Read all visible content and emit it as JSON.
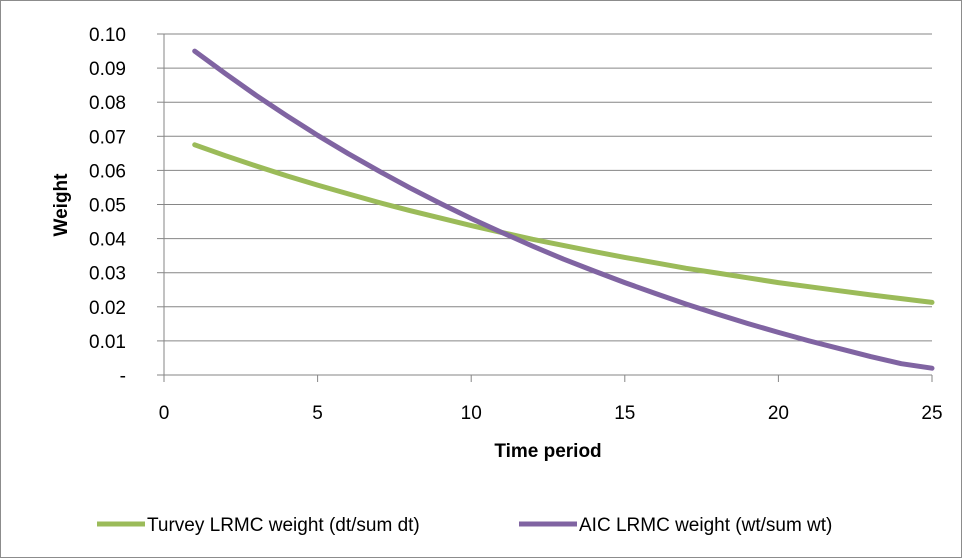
{
  "chart_data": {
    "type": "line",
    "xlabel": "Time period",
    "ylabel": "Weight",
    "xlim": [
      0,
      25
    ],
    "ylim": [
      0,
      0.1
    ],
    "x_ticks": [
      0,
      5,
      10,
      15,
      20,
      25
    ],
    "x_tick_labels": [
      "0",
      "5",
      "10",
      "15",
      "20",
      "25"
    ],
    "y_ticks": [
      0,
      0.01,
      0.02,
      0.03,
      0.04,
      0.05,
      0.06,
      0.07,
      0.08,
      0.09,
      0.1
    ],
    "y_tick_labels": [
      "-",
      "0.01",
      "0.02",
      "0.03",
      "0.04",
      "0.05",
      "0.06",
      "0.07",
      "0.08",
      "0.09",
      "0.10"
    ],
    "grid": "horizontal",
    "legend_position": "bottom",
    "x": [
      1,
      2,
      3,
      4,
      5,
      6,
      7,
      8,
      9,
      10,
      11,
      12,
      13,
      14,
      15,
      16,
      17,
      18,
      19,
      20,
      21,
      22,
      23,
      24,
      25
    ],
    "series": [
      {
        "name": "Turvey LRMC weight (dt/sum dt)",
        "color": "#9bbb59",
        "values": [
          0.0675,
          0.0643,
          0.0613,
          0.0584,
          0.0557,
          0.0531,
          0.0506,
          0.0482,
          0.046,
          0.0438,
          0.0418,
          0.0398,
          0.038,
          0.0362,
          0.0345,
          0.0329,
          0.0313,
          0.0299,
          0.0285,
          0.0271,
          0.0259,
          0.0247,
          0.0235,
          0.0224,
          0.0213
        ]
      },
      {
        "name": "AIC LRMC weight (wt/sum wt)",
        "color": "#8064a2",
        "values": [
          0.095,
          0.0884,
          0.082,
          0.076,
          0.0703,
          0.0649,
          0.0598,
          0.0549,
          0.0503,
          0.0459,
          0.0418,
          0.0378,
          0.034,
          0.0305,
          0.0271,
          0.0239,
          0.0208,
          0.0179,
          0.0151,
          0.0125,
          0.01,
          0.0077,
          0.0054,
          0.0033,
          0.002
        ]
      }
    ]
  }
}
